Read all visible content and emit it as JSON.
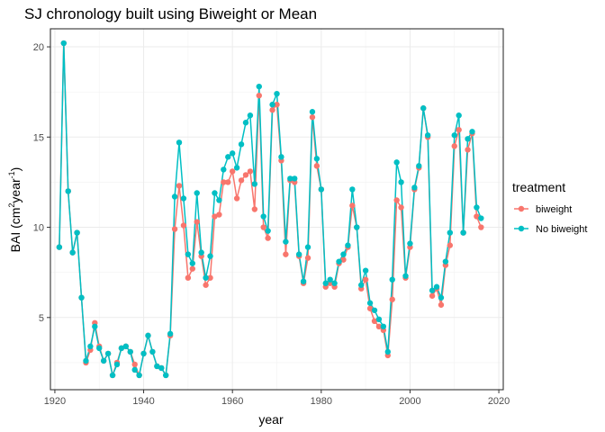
{
  "chart_data": {
    "type": "line",
    "title": "SJ chronology built using Biweight or Mean",
    "xlabel": "year",
    "ylabel_main": "BAI (cm",
    "ylabel_sup1": "2",
    "ylabel_mid": "year",
    "ylabel_sup2": "-1",
    "ylabel_end": ")",
    "xlim": [
      1919,
      2021
    ],
    "ylim": [
      1.0,
      21.0
    ],
    "x_ticks": [
      1920,
      1940,
      1960,
      1980,
      2000,
      2020
    ],
    "x_tick_labels": [
      "1920",
      "1940",
      "1960",
      "1980",
      "2000",
      "2020"
    ],
    "y_ticks": [
      5,
      10,
      15,
      20
    ],
    "y_tick_labels": [
      "5",
      "10",
      "15",
      "20"
    ],
    "grid": true,
    "legend_position": "right",
    "legend_title": "treatment",
    "x": [
      1921,
      1922,
      1923,
      1924,
      1925,
      1926,
      1927,
      1928,
      1929,
      1930,
      1931,
      1932,
      1933,
      1934,
      1935,
      1936,
      1937,
      1938,
      1939,
      1940,
      1941,
      1942,
      1943,
      1944,
      1945,
      1946,
      1947,
      1948,
      1949,
      1950,
      1951,
      1952,
      1953,
      1954,
      1955,
      1956,
      1957,
      1958,
      1959,
      1960,
      1961,
      1962,
      1963,
      1964,
      1965,
      1966,
      1967,
      1968,
      1969,
      1970,
      1971,
      1972,
      1973,
      1974,
      1975,
      1976,
      1977,
      1978,
      1979,
      1980,
      1981,
      1982,
      1983,
      1984,
      1985,
      1986,
      1987,
      1988,
      1989,
      1990,
      1991,
      1992,
      1993,
      1994,
      1995,
      1996,
      1997,
      1998,
      1999,
      2000,
      2001,
      2002,
      2003,
      2004,
      2005,
      2006,
      2007,
      2008,
      2009,
      2010,
      2011,
      2012,
      2013,
      2014,
      2015,
      2016
    ],
    "series": [
      {
        "name": "biweight",
        "color": "#F8766D",
        "values": [
          8.9,
          20.2,
          12.0,
          8.6,
          9.7,
          6.1,
          2.5,
          3.2,
          4.7,
          3.4,
          2.6,
          3.0,
          1.8,
          2.5,
          3.3,
          3.4,
          3.1,
          2.4,
          1.8,
          3.0,
          4.0,
          3.1,
          2.3,
          2.2,
          1.8,
          4.0,
          9.9,
          12.3,
          10.1,
          7.2,
          7.7,
          10.3,
          8.4,
          6.8,
          7.2,
          10.6,
          10.7,
          12.5,
          12.5,
          13.1,
          11.6,
          12.6,
          12.9,
          13.1,
          11.0,
          17.3,
          10.0,
          9.4,
          16.5,
          16.8,
          13.7,
          8.5,
          12.6,
          12.5,
          8.4,
          6.9,
          8.3,
          16.1,
          13.4,
          12.1,
          6.7,
          6.9,
          6.7,
          8.0,
          8.2,
          8.9,
          11.2,
          10.0,
          6.6,
          7.1,
          5.5,
          4.8,
          4.5,
          4.3,
          2.9,
          6.0,
          11.5,
          11.1,
          7.2,
          8.9,
          12.1,
          13.3,
          16.6,
          15.0,
          6.2,
          6.6,
          5.7,
          7.9,
          9.0,
          14.5,
          15.4,
          9.7,
          14.3,
          15.2,
          10.6,
          10.0
        ]
      },
      {
        "name": "No biweight",
        "color": "#00BFC4",
        "values": [
          8.9,
          20.2,
          12.0,
          8.6,
          9.7,
          6.1,
          2.6,
          3.4,
          4.5,
          3.3,
          2.6,
          3.0,
          1.8,
          2.4,
          3.3,
          3.4,
          3.1,
          2.1,
          1.8,
          3.0,
          4.0,
          3.1,
          2.3,
          2.2,
          1.8,
          4.1,
          11.7,
          14.7,
          11.6,
          8.5,
          8.0,
          11.9,
          8.6,
          7.2,
          8.4,
          11.9,
          11.5,
          13.2,
          13.9,
          14.1,
          13.3,
          14.6,
          15.8,
          16.2,
          12.4,
          17.8,
          10.6,
          9.8,
          16.8,
          17.4,
          13.9,
          9.2,
          12.7,
          12.7,
          8.5,
          7.0,
          8.9,
          16.4,
          13.8,
          12.1,
          6.9,
          7.1,
          6.9,
          8.1,
          8.5,
          9.0,
          12.1,
          10.0,
          6.8,
          7.6,
          5.8,
          5.4,
          4.9,
          4.5,
          3.1,
          7.1,
          13.6,
          12.5,
          7.3,
          9.1,
          12.2,
          13.4,
          16.6,
          15.1,
          6.5,
          6.7,
          6.1,
          8.1,
          9.7,
          15.1,
          16.2,
          9.7,
          14.9,
          15.3,
          11.1,
          10.5
        ]
      }
    ]
  }
}
